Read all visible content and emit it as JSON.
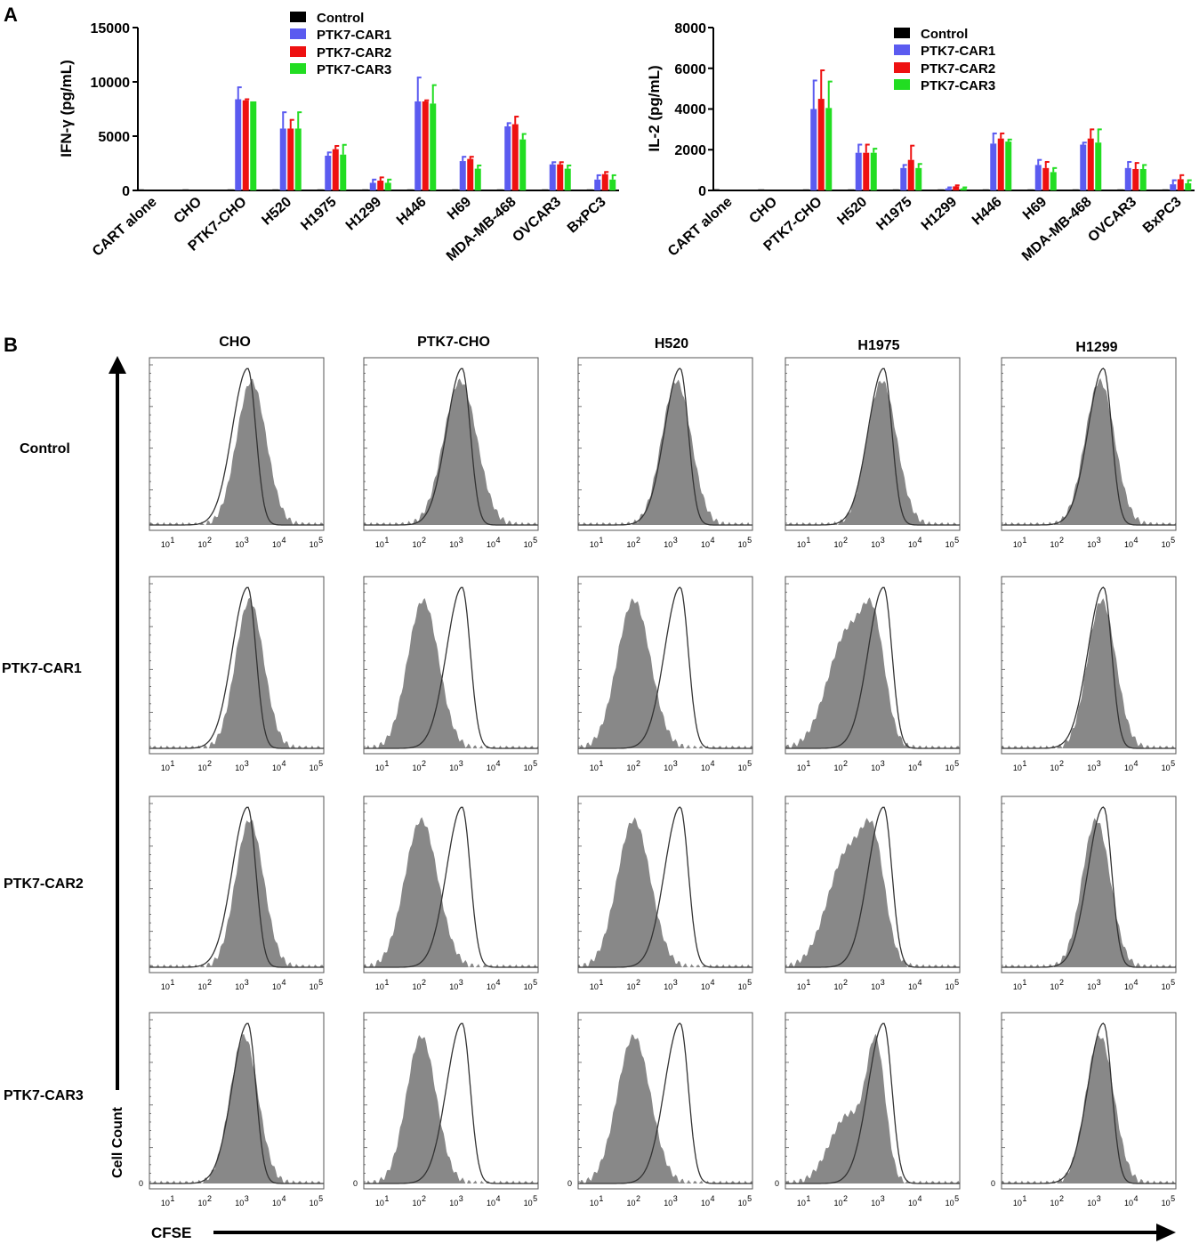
{
  "colors": {
    "control": "#000000",
    "car1": "#5b5bf0",
    "car2": "#ee1111",
    "car3": "#22dd22",
    "filled_hist": "#888888",
    "outline_hist": "#333333"
  },
  "panel_a": {
    "label": "A",
    "charts": [
      {
        "type": "bar",
        "ylabel": "IFN-γ (pg/mL)",
        "ylim": [
          0,
          15000
        ],
        "yticks": [
          "0",
          "5000",
          "10000",
          "15000"
        ],
        "ytick_values": [
          0,
          5000,
          10000,
          15000
        ],
        "categories": [
          "CART alone",
          "CHO",
          "PTK7-CHO",
          "H520",
          "H1975",
          "H1299",
          "H446",
          "H69",
          "MDA-MB-468",
          "OVCAR3",
          "BxPC3"
        ],
        "series": [
          {
            "name": "Control",
            "color_key": "control",
            "values": [
              60,
              40,
              40,
              40,
              30,
              30,
              40,
              30,
              40,
              30,
              30
            ],
            "errors": [
              0,
              0,
              0,
              0,
              0,
              0,
              0,
              0,
              0,
              0,
              0
            ]
          },
          {
            "name": "PTK7-CAR1",
            "color_key": "car1",
            "values": [
              0,
              0,
              8400,
              5700,
              3200,
              700,
              8200,
              2700,
              5900,
              2400,
              1000
            ],
            "errors": [
              0,
              0,
              1100,
              1500,
              300,
              300,
              2200,
              400,
              300,
              200,
              400
            ]
          },
          {
            "name": "PTK7-CAR2",
            "color_key": "car2",
            "values": [
              0,
              0,
              8300,
              5700,
              3800,
              900,
              8200,
              2900,
              6100,
              2400,
              1500
            ],
            "errors": [
              0,
              0,
              100,
              800,
              300,
              300,
              100,
              200,
              700,
              200,
              200
            ]
          },
          {
            "name": "PTK7-CAR3",
            "color_key": "car3",
            "values": [
              0,
              0,
              8200,
              5700,
              3300,
              700,
              8000,
              2000,
              4700,
              2000,
              1000
            ],
            "errors": [
              0,
              0,
              0,
              1500,
              900,
              300,
              1700,
              300,
              500,
              300,
              400
            ]
          }
        ]
      },
      {
        "type": "bar",
        "ylabel": "IL-2 (pg/mL)",
        "ylim": [
          0,
          8000
        ],
        "yticks": [
          "0",
          "2000",
          "4000",
          "6000",
          "8000"
        ],
        "ytick_values": [
          0,
          2000,
          4000,
          6000,
          8000
        ],
        "categories": [
          "CART alone",
          "CHO",
          "PTK7-CHO",
          "H520",
          "H1975",
          "H1299",
          "H446",
          "H69",
          "MDA-MB-468",
          "OVCAR3",
          "BxPC3"
        ],
        "series": [
          {
            "name": "Control",
            "color_key": "control",
            "values": [
              60,
              40,
              40,
              40,
              30,
              30,
              40,
              30,
              40,
              30,
              30
            ],
            "errors": [
              0,
              0,
              0,
              0,
              0,
              0,
              0,
              0,
              0,
              0,
              0
            ]
          },
          {
            "name": "PTK7-CAR1",
            "color_key": "car1",
            "values": [
              0,
              0,
              4000,
              1850,
              1100,
              100,
              2300,
              1250,
              2250,
              1100,
              300
            ],
            "errors": [
              0,
              0,
              1400,
              400,
              150,
              50,
              500,
              250,
              100,
              300,
              200
            ]
          },
          {
            "name": "PTK7-CAR2",
            "color_key": "car2",
            "values": [
              0,
              0,
              4500,
              1850,
              1500,
              200,
              2550,
              1100,
              2550,
              1050,
              550
            ],
            "errors": [
              0,
              0,
              1400,
              400,
              700,
              50,
              250,
              300,
              450,
              300,
              200
            ]
          },
          {
            "name": "PTK7-CAR3",
            "color_key": "car3",
            "values": [
              0,
              0,
              4050,
              1850,
              1100,
              100,
              2400,
              900,
              2350,
              1050,
              350
            ],
            "errors": [
              0,
              0,
              1300,
              200,
              200,
              50,
              100,
              200,
              650,
              200,
              150
            ]
          }
        ]
      }
    ]
  },
  "panel_b": {
    "label": "B",
    "columns": [
      "CHO",
      "PTK7-CHO",
      "H520",
      "H1975",
      "H1299"
    ],
    "rows": [
      "Control",
      "PTK7-CAR1",
      "PTK7-CAR2",
      "PTK7-CAR3"
    ],
    "xticks": [
      "10",
      "10",
      "10",
      "10",
      "10"
    ],
    "xtick_exponents": [
      "1",
      "2",
      "3",
      "4",
      "5"
    ],
    "y_axis_label": "Cell Count",
    "x_axis_label": "CFSE",
    "zero_tick": "0",
    "chart_data": {
      "type": "histogram-grid",
      "x_scale": "log10",
      "x_range": [
        0.5,
        5.2
      ],
      "outline_peak_log10": [
        3.15,
        3.15,
        3.25,
        3.15,
        3.25
      ],
      "filled_components_log10": [
        [
          [
            {
              "mu": 3.25,
              "sigma": 0.4,
              "w": 1
            }
          ],
          [
            {
              "mu": 3.1,
              "sigma": 0.45,
              "w": 1
            }
          ],
          [
            {
              "mu": 3.15,
              "sigma": 0.4,
              "w": 1
            }
          ],
          [
            {
              "mu": 3.1,
              "sigma": 0.4,
              "w": 1
            }
          ],
          [
            {
              "mu": 3.15,
              "sigma": 0.4,
              "w": 1
            }
          ]
        ],
        [
          [
            {
              "mu": 3.2,
              "sigma": 0.38,
              "w": 1
            }
          ],
          [
            {
              "mu": 2.1,
              "sigma": 0.42,
              "w": 1
            }
          ],
          [
            {
              "mu": 2.0,
              "sigma": 0.45,
              "w": 1
            }
          ],
          [
            {
              "mu": 2.2,
              "sigma": 0.55,
              "w": 0.8
            },
            {
              "mu": 2.9,
              "sigma": 0.3,
              "w": 0.6
            }
          ],
          [
            {
              "mu": 3.2,
              "sigma": 0.38,
              "w": 1
            }
          ]
        ],
        [
          [
            {
              "mu": 3.2,
              "sigma": 0.38,
              "w": 1
            }
          ],
          [
            {
              "mu": 2.05,
              "sigma": 0.45,
              "w": 1
            }
          ],
          [
            {
              "mu": 2.0,
              "sigma": 0.45,
              "w": 1
            }
          ],
          [
            {
              "mu": 2.2,
              "sigma": 0.55,
              "w": 0.8
            },
            {
              "mu": 2.9,
              "sigma": 0.3,
              "w": 0.6
            }
          ],
          [
            {
              "mu": 3.05,
              "sigma": 0.38,
              "w": 1
            }
          ]
        ],
        [
          [
            {
              "mu": 3.05,
              "sigma": 0.38,
              "w": 1
            }
          ],
          [
            {
              "mu": 2.05,
              "sigma": 0.4,
              "w": 1
            }
          ],
          [
            {
              "mu": 2.0,
              "sigma": 0.45,
              "w": 1
            }
          ],
          [
            {
              "mu": 2.2,
              "sigma": 0.5,
              "w": 0.55
            },
            {
              "mu": 2.95,
              "sigma": 0.25,
              "w": 1
            }
          ],
          [
            {
              "mu": 3.15,
              "sigma": 0.38,
              "w": 1
            }
          ]
        ]
      ]
    }
  }
}
